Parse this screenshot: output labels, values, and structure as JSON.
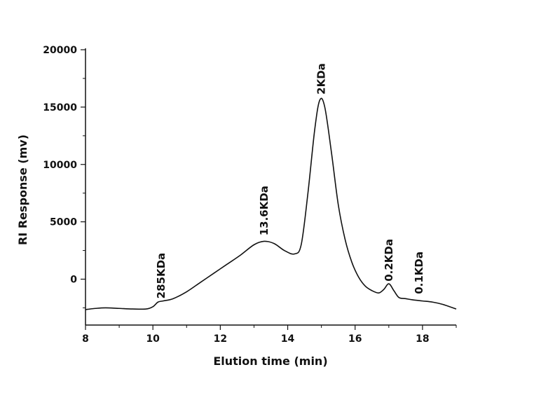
{
  "chart_data": {
    "type": "line",
    "xlabel": "Elution time (min)",
    "ylabel": "RI Response (mv)",
    "xlim": [
      8,
      19
    ],
    "ylim": [
      -4000,
      20000
    ],
    "xticks": [
      8,
      10,
      12,
      14,
      16,
      18
    ],
    "yticks": [
      0,
      5000,
      10000,
      15000,
      20000
    ],
    "grid": false,
    "series": [
      {
        "x": [
          8.0,
          8.3,
          8.6,
          9.0,
          9.4,
          9.8,
          10.0,
          10.15,
          10.3,
          10.6,
          11.0,
          11.4,
          11.8,
          12.2,
          12.6,
          13.0,
          13.3,
          13.6,
          13.9,
          14.2,
          14.4,
          14.6,
          14.8,
          14.95,
          15.1,
          15.3,
          15.5,
          15.7,
          15.9,
          16.1,
          16.3,
          16.5,
          16.7,
          16.85,
          17.0,
          17.15,
          17.3,
          17.5,
          17.7,
          18.0,
          18.3,
          18.6,
          19.0
        ],
        "y": [
          -2650,
          -2550,
          -2500,
          -2550,
          -2600,
          -2600,
          -2400,
          -2000,
          -1900,
          -1700,
          -1100,
          -300,
          500,
          1300,
          2100,
          3000,
          3300,
          3100,
          2500,
          2200,
          3000,
          7500,
          13000,
          15600,
          15000,
          11000,
          6500,
          3500,
          1500,
          200,
          -600,
          -1000,
          -1200,
          -900,
          -400,
          -1000,
          -1600,
          -1700,
          -1800,
          -1900,
          -2000,
          -2200,
          -2600
        ]
      }
    ],
    "annotations": [
      {
        "label": "285KDa",
        "x": 10.25,
        "y": -1700
      },
      {
        "label": "13.6KDa",
        "x": 13.3,
        "y": 3800
      },
      {
        "label": "2KDa",
        "x": 15.0,
        "y": 16100
      },
      {
        "label": "0.2KDa",
        "x": 17.0,
        "y": -200
      },
      {
        "label": "0.1KDa",
        "x": 17.9,
        "y": -1300
      }
    ]
  }
}
